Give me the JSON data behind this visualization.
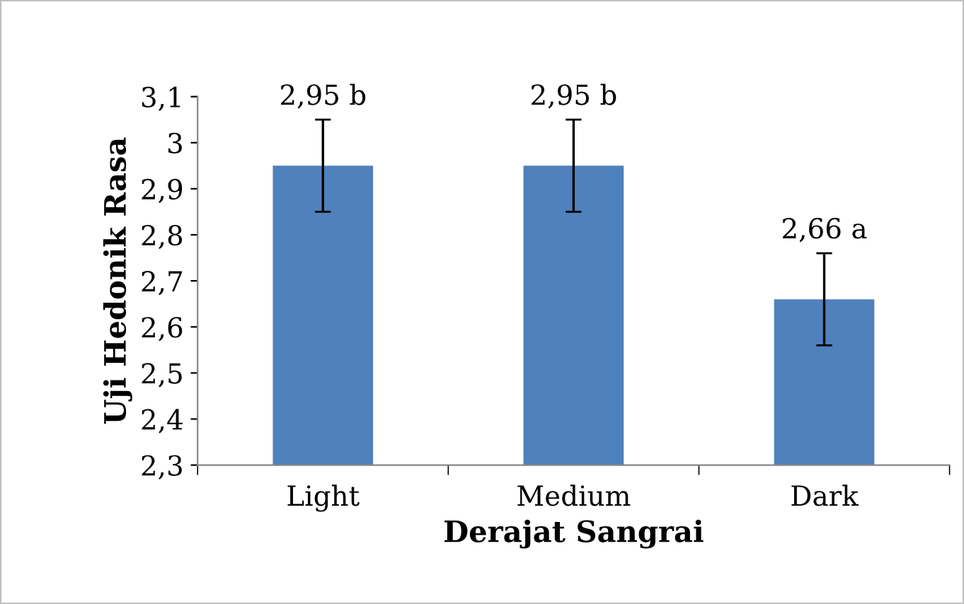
{
  "chart_data": {
    "type": "bar",
    "xlabel": "Derajat Sangrai",
    "ylabel": "Uji Hedonik Rasa",
    "categories": [
      "Light",
      "Medium",
      "Dark"
    ],
    "values": [
      2.95,
      2.95,
      2.66
    ],
    "errors": [
      0.1,
      0.1,
      0.1
    ],
    "value_labels": [
      "2,95 b",
      "2,95 b",
      "2,66 a"
    ],
    "color": "#4f81bd",
    "ylim": [
      2.3,
      3.1
    ],
    "yticks": [
      {
        "value": 2.3,
        "label": "2,3"
      },
      {
        "value": 2.4,
        "label": "2,4"
      },
      {
        "value": 2.5,
        "label": "2,5"
      },
      {
        "value": 2.6,
        "label": "2,6"
      },
      {
        "value": 2.7,
        "label": "2,7"
      },
      {
        "value": 2.8,
        "label": "2,8"
      },
      {
        "value": 2.9,
        "label": "2,9"
      },
      3,
      {
        "value": 3.1,
        "label": "3,1"
      }
    ],
    "grid": false,
    "legend": false
  }
}
